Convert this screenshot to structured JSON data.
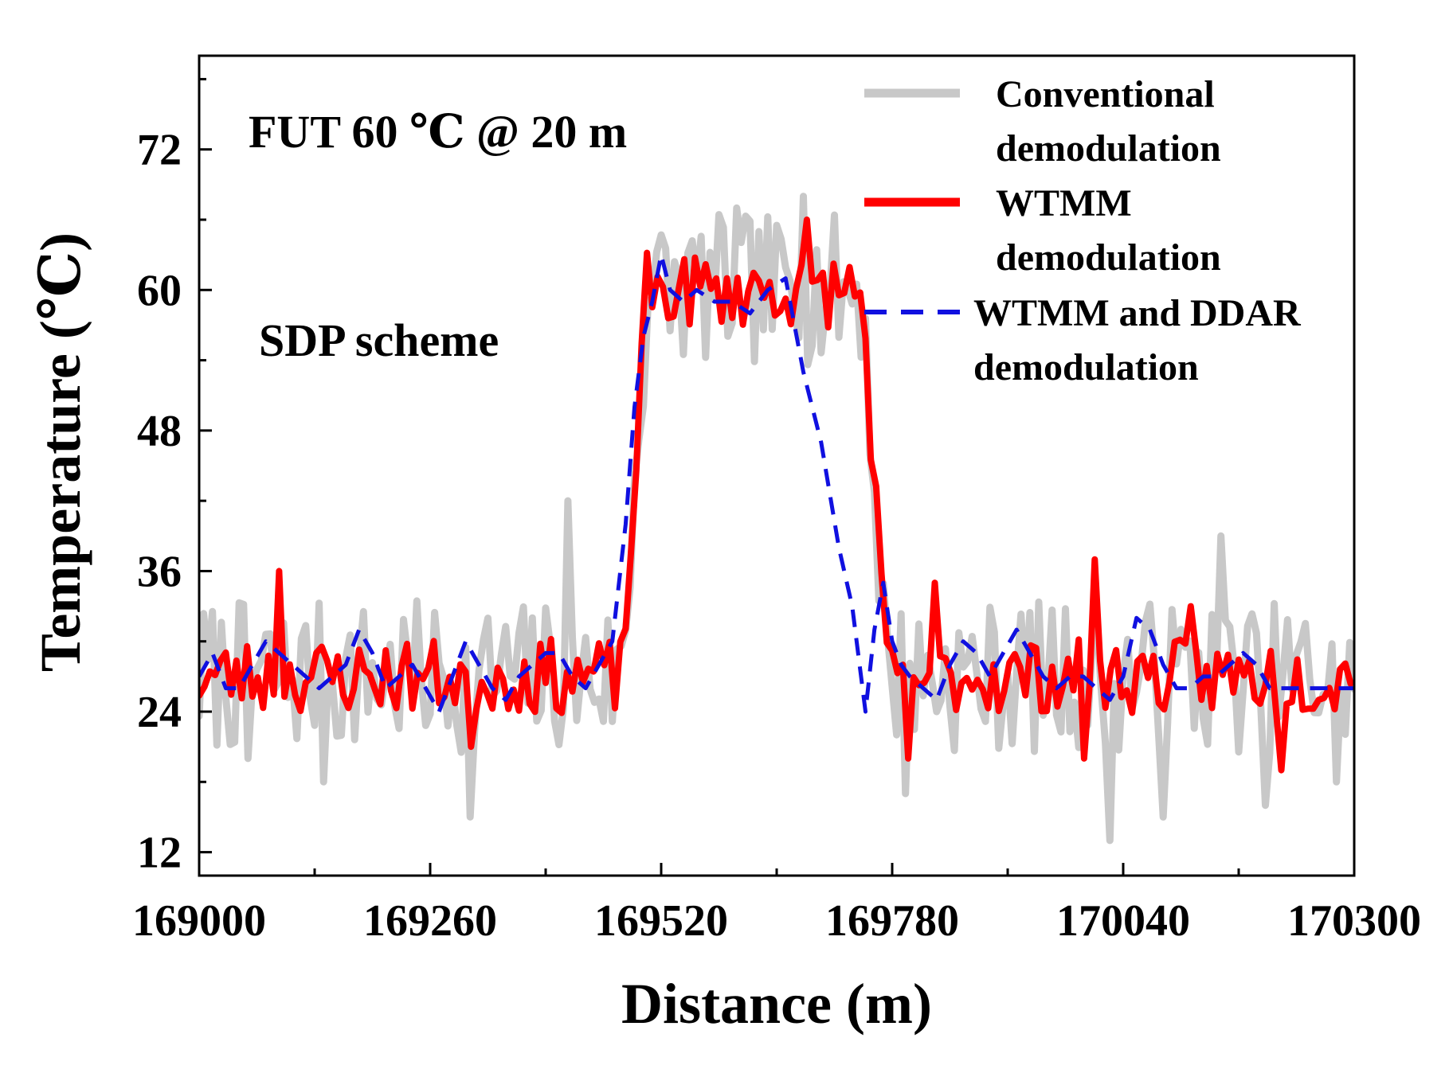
{
  "chart_data": {
    "type": "line",
    "xlabel": "Distance (m)",
    "ylabel": "Temperature (℃)",
    "xlim": [
      169000,
      170300
    ],
    "ylim": [
      10,
      80
    ],
    "xticks": [
      169000,
      169260,
      169520,
      169780,
      170040,
      170300
    ],
    "xtick_labels": [
      "169000",
      "169260",
      "169520",
      "169780",
      "170040",
      "170300"
    ],
    "yticks": [
      12,
      24,
      36,
      48,
      60,
      72
    ],
    "ytick_labels": [
      "12",
      "24",
      "36",
      "48",
      "60",
      "72"
    ],
    "grid": false,
    "legend_position": "top-right",
    "annotations": [
      "FUT 60 ℃ @ 20 m",
      "SDP scheme"
    ],
    "hot_zone": {
      "start": 169490,
      "end": 169760,
      "temperature": 60
    },
    "baseline_temperature": 27,
    "series": [
      {
        "name": "Conventional demodulation",
        "legend_lines": [
          "Conventional",
          "demodulation"
        ],
        "color": "#c8c8c8",
        "style": "solid",
        "noise": 6.5,
        "seed": 7,
        "step_m": 5,
        "spikes": [
          [
            169055,
            20
          ],
          [
            169140,
            18
          ],
          [
            169305,
            15
          ],
          [
            169415,
            42
          ],
          [
            169605,
            67
          ],
          [
            169680,
            68
          ],
          [
            169795,
            17
          ],
          [
            170025,
            13
          ],
          [
            170085,
            15
          ],
          [
            170150,
            39
          ],
          [
            170200,
            16
          ],
          [
            170280,
            18
          ]
        ]
      },
      {
        "name": "WTMM demodulation",
        "legend_lines": [
          "WTMM",
          "demodulation"
        ],
        "color": "#ff0000",
        "style": "solid",
        "noise": 3.2,
        "seed": 23,
        "step_m": 6,
        "spikes": [
          [
            169090,
            36
          ],
          [
            169305,
            21
          ],
          [
            169595,
            61
          ],
          [
            169685,
            66
          ],
          [
            169800,
            20
          ],
          [
            169830,
            35
          ],
          [
            170000,
            20
          ],
          [
            170010,
            37
          ],
          [
            170120,
            33
          ],
          [
            170220,
            19
          ]
        ]
      },
      {
        "name": "WTMM and DDAR demodulation",
        "legend_lines": [
          "WTMM and DDAR",
          "demodulation"
        ],
        "color": "#1010e0",
        "style": "dashed",
        "x": [
          169000,
          169015,
          169030,
          169045,
          169060,
          169075,
          169090,
          169105,
          169120,
          169135,
          169150,
          169165,
          169180,
          169195,
          169210,
          169225,
          169240,
          169255,
          169270,
          169285,
          169300,
          169315,
          169330,
          169345,
          169360,
          169375,
          169390,
          169405,
          169420,
          169435,
          169450,
          169465,
          169480,
          169490,
          169500,
          169510,
          169520,
          169530,
          169545,
          169560,
          169580,
          169600,
          169620,
          169640,
          169660,
          169680,
          169700,
          169720,
          169735,
          169750,
          169760,
          169770,
          169780,
          169785,
          169790,
          169800,
          169815,
          169830,
          169845,
          169860,
          169875,
          169890,
          169905,
          169920,
          169935,
          169950,
          169965,
          169980,
          169995,
          170010,
          170025,
          170040,
          170055,
          170070,
          170085,
          170100,
          170115,
          170130,
          170145,
          170160,
          170175,
          170190,
          170205,
          170220,
          170235,
          170250,
          170265,
          170280,
          170300
        ],
        "y": [
          27,
          29,
          26,
          26,
          28,
          30,
          29,
          28,
          27,
          26,
          27,
          28,
          31,
          29,
          26,
          27,
          28,
          26,
          24,
          27,
          30,
          28,
          26,
          25,
          27,
          28,
          29,
          29,
          27,
          26,
          28,
          30,
          40,
          50,
          56,
          59,
          63,
          60,
          59,
          60,
          59,
          59,
          58,
          60,
          61,
          53,
          47,
          38,
          33,
          24,
          31,
          35,
          30,
          29,
          28,
          27,
          26,
          25,
          28,
          30,
          29,
          27,
          29,
          31,
          29,
          27,
          26,
          27,
          27,
          26,
          25,
          27,
          32,
          31,
          28,
          26,
          26,
          27,
          27,
          28,
          29,
          28,
          26,
          26,
          26,
          26,
          26,
          26,
          26
        ]
      }
    ]
  }
}
